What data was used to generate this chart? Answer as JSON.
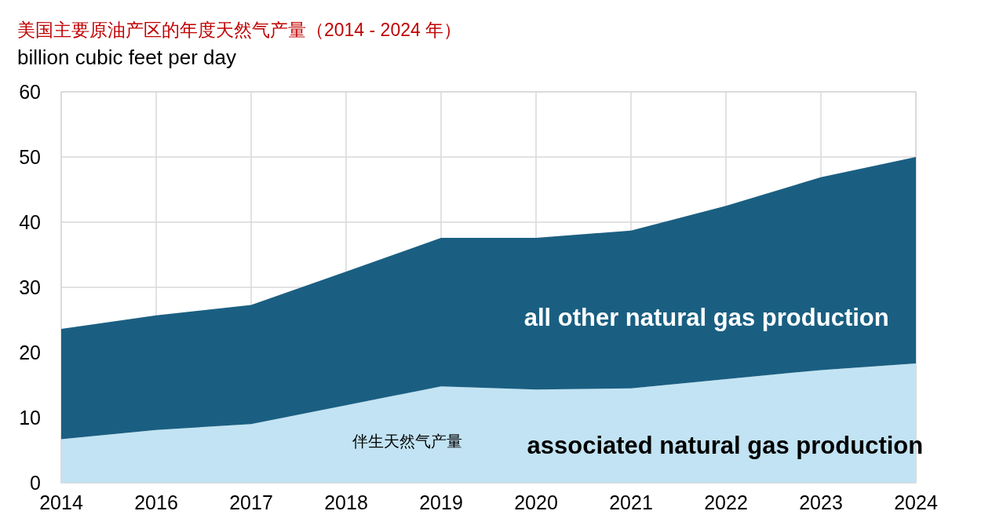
{
  "chart_data": {
    "type": "area",
    "stacked": true,
    "title": "美国主要原油产区的年度天然气产量（2014 - 2024 年）",
    "ylabel": "billion cubic feet per day",
    "categories": [
      "2014",
      "2016",
      "2017",
      "2018",
      "2019",
      "2020",
      "2021",
      "2022",
      "2023",
      "2024"
    ],
    "series": [
      {
        "name": "associated natural gas production",
        "color": "#c2e3f3",
        "values": [
          6.7,
          8.1,
          9.0,
          11.9,
          14.8,
          14.3,
          14.5,
          15.9,
          17.3,
          18.3
        ]
      },
      {
        "name": "all other natural gas production",
        "color": "#1a5f82",
        "values": [
          16.9,
          17.6,
          18.3,
          20.5,
          22.8,
          23.3,
          24.2,
          26.6,
          29.6,
          31.7
        ]
      }
    ],
    "ylim": [
      0,
      60
    ],
    "yticks": [
      0,
      10,
      20,
      30,
      40,
      50,
      60
    ],
    "grid": true,
    "annotations": [
      "伴生天然气产量"
    ]
  }
}
